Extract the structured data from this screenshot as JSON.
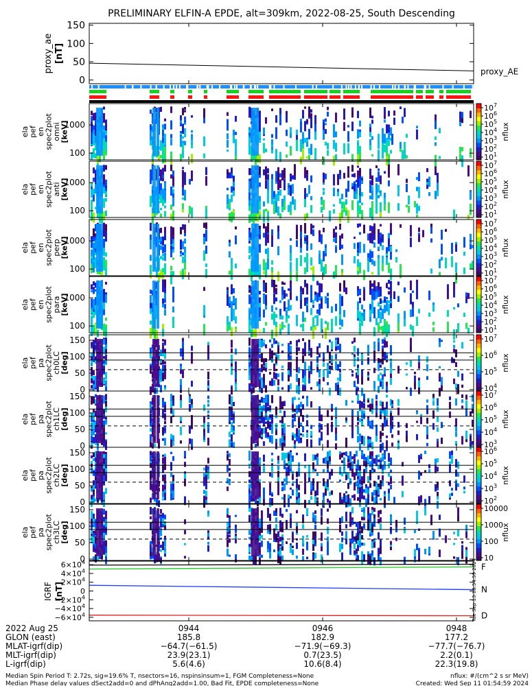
{
  "title": "PRELIMINARY ELFIN-A EPDE, alt=309km, 2022-08-25, South Descending",
  "colors": {
    "bar_blue": "#1f8fff",
    "bar_green": "#14d21e",
    "bar_red": "#ff1414",
    "line_F": "#1ec81e",
    "line_N": "#1e3cff",
    "line_D": "#e01e1e"
  },
  "colorbar_palette": [
    "#ffffff",
    "#3c0a64",
    "#4a0a8c",
    "#1e1ec8",
    "#0050ff",
    "#0096ff",
    "#00c8e6",
    "#00dcb4",
    "#28e650",
    "#a0f000",
    "#ffff00",
    "#ffb400",
    "#ff6400",
    "#ff0000"
  ],
  "chart_data": [
    {
      "type": "line",
      "name_panel": "proxy_ae",
      "ylabel": "proxy_ae\n[nT]",
      "ylim": [
        -10,
        155
      ],
      "yticks": [
        "150",
        "100",
        "50",
        "0"
      ],
      "series": [
        {
          "name": "proxy_AE",
          "x": [
            0,
            1
          ],
          "y": [
            46,
            25
          ]
        }
      ]
    },
    {
      "type": "heatmap",
      "panels": [
        {
          "ylabel": "ela pef en spec2plot omni [keV]",
          "yticks": [
            "1000",
            "100"
          ],
          "cbticks": [
            "10^7",
            "10^6",
            "10^5",
            "10^4",
            "10^3",
            "10^2",
            "10^1"
          ],
          "cblabel": "nflux"
        },
        {
          "ylabel": "ela pef en spec2plot anti [keV]",
          "yticks": [
            "1000",
            "100"
          ],
          "cbticks": [
            "10^7",
            "10^6",
            "10^5",
            "10^4",
            "10^3",
            "10^2",
            "10^1"
          ],
          "cblabel": "nflux"
        },
        {
          "ylabel": "ela pef en spec2plot perp [keV]",
          "yticks": [
            "1000",
            "100"
          ],
          "cbticks": [
            "10^7",
            "10^6",
            "10^5",
            "10^4",
            "10^3",
            "10^2",
            "10^1"
          ],
          "cblabel": "nflux"
        },
        {
          "ylabel": "ela pef en spec2plot para [keV]",
          "yticks": [
            "1000",
            "100"
          ],
          "cbticks": [
            "10^7",
            "10^6",
            "10^5",
            "10^4",
            "10^3",
            "10^2",
            "10^1"
          ],
          "cblabel": "nflux"
        },
        {
          "ylabel": "ela pef pa spec2plot ch0LC [deg]",
          "yticks": [
            "150",
            "100",
            "50",
            "0"
          ],
          "cbticks": [
            "10^7",
            "10^6",
            "10^5",
            "10^4"
          ],
          "cblabel": "nflux"
        },
        {
          "ylabel": "ela pef pa spec2plot ch1LC [deg]",
          "yticks": [
            "150",
            "100",
            "50",
            "0"
          ],
          "cbticks": [
            "10^7",
            "10^6",
            "10^5",
            "10^4",
            "10^3"
          ],
          "cblabel": "nflux"
        },
        {
          "ylabel": "ela pef pa spec2plot ch2LC [deg]",
          "yticks": [
            "150",
            "100",
            "50",
            "0"
          ],
          "cbticks": [
            "10^6",
            "10^5",
            "10^4",
            "10^3",
            "10^2"
          ],
          "cblabel": "nflux"
        },
        {
          "ylabel": "ela pef pa spec2plot ch3LC [deg]",
          "yticks": [
            "150",
            "100",
            "50",
            "0"
          ],
          "cbticks": [
            "10000",
            "1000",
            "100",
            "10"
          ],
          "cblabel": "nflux"
        }
      ]
    },
    {
      "type": "line",
      "name_panel": "igrf",
      "ylabel": "IGRF\n[nT]",
      "ylim": [
        -68000,
        68000
      ],
      "yticks": [
        "6×10^4",
        "4×10^4",
        "2×10^4",
        "0",
        "−2×10^4",
        "−4×10^4",
        "−6×10^4"
      ],
      "series": [
        {
          "name": "F",
          "x": [
            0,
            1
          ],
          "y": [
            50000,
            55000
          ]
        },
        {
          "name": "N",
          "x": [
            0,
            1
          ],
          "y": [
            13000,
            3000
          ]
        },
        {
          "name": "D",
          "x": [
            0,
            1
          ],
          "y": [
            -55000,
            -56500
          ]
        },
        {
          "name": "top",
          "x": [
            0,
            1
          ],
          "y": [
            59000,
            61000
          ]
        }
      ],
      "side_note": "Tue Sep 13 18:54:59 2024"
    }
  ],
  "axis_labels": {
    "rows": [
      "2022 Aug 25",
      "GLON (east)",
      "MLAT-igrf(dip)",
      "MLT-igrf(dip)",
      "L-igrf(dip)"
    ],
    "cols": [
      {
        "time": "0944",
        "values": [
          "185.8",
          "−64.7(−61.5)",
          "23.9(23.1)",
          "5.6(4.6)"
        ]
      },
      {
        "time": "0946",
        "values": [
          "182.9",
          "−71.9(−69.3)",
          "0.7(23.5)",
          "10.6(8.4)"
        ]
      },
      {
        "time": "0948",
        "values": [
          "177.2",
          "−77.7(−76.7)",
          "2.2(0.1)",
          "22.3(19.8)"
        ]
      }
    ]
  },
  "footer": {
    "line1_left": "Median Spin Period T: 2.72s, sig=19.6% T, nsectors=16, nspinsinsum=1, FGM Completeness=None",
    "line2_left": "Median Phase delay values dSect2add=0 and dPhAng2add=1.00, Bad Fit, EPDE completeness=None",
    "line1_right": "nflux: #/(cm^2 s sr MeV)",
    "line2_right": "Created: Wed Sep 11 01:54:59 2024"
  }
}
